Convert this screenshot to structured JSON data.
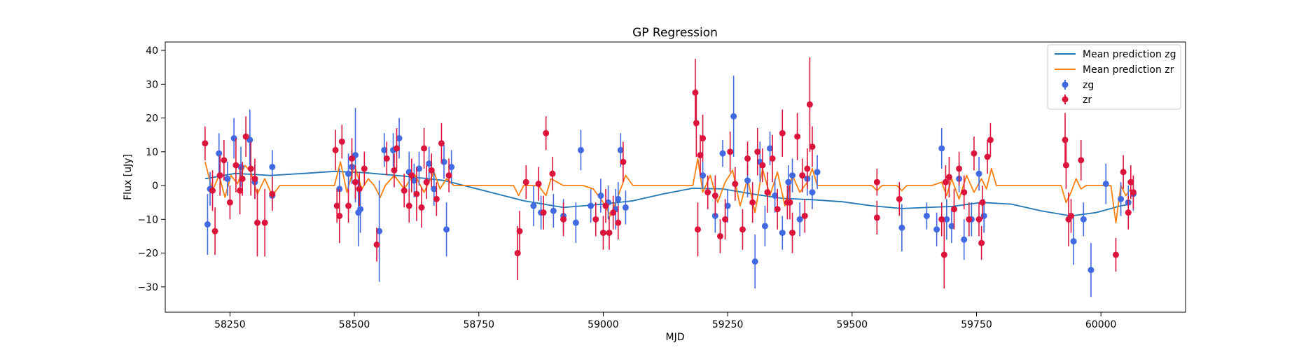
{
  "chart_data": {
    "type": "scatter",
    "title": "GP Regression",
    "xlabel": "MJD",
    "ylabel": "Flux [uJy]",
    "xlim": [
      58120,
      60170
    ],
    "ylim": [
      -37.5,
      42.5
    ],
    "xticks": [
      58250,
      58500,
      58750,
      59000,
      59250,
      59500,
      59750,
      60000
    ],
    "yticks": [
      -30,
      -20,
      -10,
      0,
      10,
      20,
      30,
      40
    ],
    "grid": false,
    "legend_position": "top-right",
    "colors": {
      "zg_line": "#1f77b4",
      "zr_line": "#ff7f0e",
      "zg_points": "#4169e1",
      "zr_points": "#dc143c"
    },
    "series": [
      {
        "name": "Mean prediction zg",
        "kind": "line",
        "x": [
          58200,
          58260,
          58330,
          58400,
          58460,
          58520,
          58600,
          58680,
          58760,
          58840,
          58920,
          59000,
          59060,
          59120,
          59180,
          59240,
          59300,
          59360,
          59420,
          59480,
          59540,
          59600,
          59650,
          59700,
          59760,
          59820,
          59880,
          59940,
          59990,
          60040,
          60060
        ],
        "y": [
          2.0,
          3.6,
          3.0,
          3.6,
          4.2,
          3.8,
          2.8,
          1.5,
          -1.5,
          -4.5,
          -6.5,
          -5.5,
          -4.5,
          -2.5,
          -0.8,
          -1.0,
          -2.5,
          -3.8,
          -4.2,
          -4.8,
          -6.0,
          -6.8,
          -6.5,
          -6.2,
          -5.0,
          -5.5,
          -7.5,
          -9.0,
          -8.0,
          -6.0,
          -5.5
        ]
      },
      {
        "name": "Mean prediction zr",
        "kind": "line",
        "x": [
          58200,
          58215,
          58228,
          58240,
          58252,
          58265,
          58280,
          58292,
          58305,
          58320,
          58335,
          58350,
          58460,
          58472,
          58485,
          58500,
          58515,
          58528,
          58540,
          58552,
          58562,
          58580,
          58600,
          58620,
          58640,
          58660,
          58672,
          58685,
          58700,
          58820,
          58830,
          58840,
          58870,
          58885,
          58895,
          58920,
          58960,
          58980,
          59000,
          59015,
          59030,
          59045,
          59060,
          59180,
          59190,
          59200,
          59215,
          59230,
          59245,
          59260,
          59275,
          59290,
          59305,
          59320,
          59335,
          59350,
          59365,
          59380,
          59395,
          59410,
          59420,
          59430,
          59540,
          59550,
          59560,
          59590,
          59600,
          59610,
          59640,
          59660,
          59680,
          59690,
          59700,
          59715,
          59730,
          59745,
          59760,
          59770,
          59780,
          59790,
          59920,
          59930,
          59940,
          59950,
          59960,
          59970,
          60020,
          60030,
          60040,
          60050,
          60060
        ],
        "y": [
          7.0,
          -1.5,
          3.0,
          -3.5,
          3.0,
          0.5,
          6.0,
          4.0,
          -2.5,
          2.0,
          -3.0,
          0.0,
          0.0,
          7.0,
          -2.0,
          6.0,
          -1.0,
          2.0,
          0.0,
          -3.5,
          0.0,
          3.0,
          -1.0,
          3.5,
          -2.0,
          4.0,
          -1.0,
          2.0,
          0.0,
          0.0,
          -3.0,
          0.0,
          0.0,
          -3.0,
          2.0,
          0.0,
          0.0,
          -1.0,
          -5.0,
          -9.0,
          -3.0,
          3.0,
          0.0,
          0.0,
          8.0,
          -2.0,
          3.0,
          -5.0,
          1.0,
          4.5,
          -6.0,
          2.0,
          -8.0,
          5.0,
          -3.0,
          4.0,
          -6.0,
          3.0,
          -2.0,
          1.0,
          5.0,
          0.0,
          0.0,
          -1.5,
          0.0,
          0.0,
          -1.5,
          0.0,
          0.0,
          0.0,
          1.0,
          -3.0,
          2.0,
          -4.0,
          3.0,
          -2.0,
          2.0,
          -1.0,
          5.0,
          0.0,
          0.0,
          -5.0,
          -2.0,
          2.0,
          -1.0,
          0.0,
          0.0,
          -11.0,
          0.0,
          -3.0,
          -1.0
        ]
      },
      {
        "name": "zg",
        "kind": "errorbar",
        "points": [
          [
            58205,
            -11.5,
            9
          ],
          [
            58210,
            -1,
            5
          ],
          [
            58228,
            9.5,
            6
          ],
          [
            58245,
            2,
            5
          ],
          [
            58258,
            14,
            6
          ],
          [
            58272,
            5.5,
            6
          ],
          [
            58290,
            13.5,
            9
          ],
          [
            58300,
            1,
            5
          ],
          [
            58335,
            5.5,
            5
          ],
          [
            58335,
            -3,
            4
          ],
          [
            58470,
            -1,
            6
          ],
          [
            58488,
            3.5,
            6
          ],
          [
            58495,
            5.5,
            5
          ],
          [
            58502,
            9,
            14
          ],
          [
            58508,
            -8,
            10
          ],
          [
            58512,
            -7,
            7
          ],
          [
            58550,
            -13.5,
            15
          ],
          [
            58560,
            10.5,
            5
          ],
          [
            58578,
            10.5,
            5
          ],
          [
            58590,
            14,
            6
          ],
          [
            58610,
            4,
            6
          ],
          [
            58630,
            5,
            5
          ],
          [
            58650,
            6.5,
            5
          ],
          [
            58680,
            7,
            5
          ],
          [
            58685,
            -13,
            8
          ],
          [
            58695,
            5.5,
            5
          ],
          [
            58660,
            -1,
            5
          ],
          [
            58620,
            1.5,
            5
          ],
          [
            58860,
            -6,
            6
          ],
          [
            58875,
            -8,
            5
          ],
          [
            58900,
            -7.5,
            5
          ],
          [
            58920,
            -9,
            5
          ],
          [
            58945,
            -11,
            6
          ],
          [
            58955,
            10.5,
            6
          ],
          [
            58975,
            -6,
            5
          ],
          [
            58995,
            -3,
            5
          ],
          [
            59010,
            -5,
            5
          ],
          [
            59025,
            -7,
            6
          ],
          [
            59035,
            10.5,
            5
          ],
          [
            59045,
            -6.5,
            5
          ],
          [
            59030,
            -4,
            5
          ],
          [
            59200,
            3,
            4
          ],
          [
            59225,
            -9,
            5
          ],
          [
            59240,
            9.5,
            4
          ],
          [
            59250,
            -6,
            5
          ],
          [
            59262,
            20.5,
            12
          ],
          [
            59290,
            1.5,
            5
          ],
          [
            59305,
            -22.5,
            8
          ],
          [
            59315,
            7,
            6
          ],
          [
            59335,
            11,
            5
          ],
          [
            59345,
            -3,
            5
          ],
          [
            59360,
            -14,
            5
          ],
          [
            59372,
            1,
            5
          ],
          [
            59380,
            3,
            5
          ],
          [
            59395,
            -10,
            5
          ],
          [
            59410,
            2,
            5
          ],
          [
            59420,
            -2,
            5
          ],
          [
            59430,
            4,
            5
          ],
          [
            59325,
            -12,
            6
          ],
          [
            59600,
            -12.5,
            7
          ],
          [
            59650,
            -9,
            4
          ],
          [
            59680,
            11,
            6
          ],
          [
            59690,
            -10,
            6
          ],
          [
            59700,
            -12,
            5
          ],
          [
            59715,
            2,
            4
          ],
          [
            59725,
            -16,
            6
          ],
          [
            59740,
            -10,
            5
          ],
          [
            59755,
            3.5,
            5
          ],
          [
            59765,
            -9,
            5
          ],
          [
            59670,
            -13,
            5
          ],
          [
            59945,
            -16.5,
            7
          ],
          [
            59965,
            -10,
            5
          ],
          [
            59980,
            -25,
            8
          ],
          [
            60010,
            0.5,
            6
          ],
          [
            60040,
            -4,
            5
          ],
          [
            60055,
            -5,
            5
          ],
          [
            60065,
            -2.5,
            5
          ]
        ]
      },
      {
        "name": "zr",
        "kind": "errorbar",
        "points": [
          [
            58200,
            12.5,
            5
          ],
          [
            58215,
            -1.5,
            6
          ],
          [
            58220,
            -13.5,
            7
          ],
          [
            58238,
            7.5,
            6
          ],
          [
            58250,
            -5,
            5
          ],
          [
            58262,
            6,
            8
          ],
          [
            58270,
            -1.5,
            7
          ],
          [
            58282,
            14.5,
            6
          ],
          [
            58292,
            5,
            8
          ],
          [
            58305,
            -11,
            10
          ],
          [
            58320,
            -11,
            10
          ],
          [
            58335,
            -2.5,
            5
          ],
          [
            58300,
            2,
            6
          ],
          [
            58275,
            2,
            5
          ],
          [
            58230,
            3,
            6
          ],
          [
            58462,
            10.5,
            6
          ],
          [
            58465,
            -6,
            5
          ],
          [
            58470,
            -9,
            8
          ],
          [
            58475,
            13,
            5
          ],
          [
            58488,
            -6,
            5
          ],
          [
            58495,
            8,
            6
          ],
          [
            58502,
            1,
            5
          ],
          [
            58510,
            -1,
            5
          ],
          [
            58520,
            5,
            5
          ],
          [
            58545,
            -17.5,
            5
          ],
          [
            58565,
            8,
            5
          ],
          [
            58585,
            11,
            6
          ],
          [
            58600,
            -1.5,
            5
          ],
          [
            58615,
            3,
            5
          ],
          [
            58625,
            -2.5,
            8
          ],
          [
            58635,
            -6.5,
            6
          ],
          [
            58645,
            1,
            5
          ],
          [
            58655,
            4.5,
            5
          ],
          [
            58665,
            -4,
            5
          ],
          [
            58675,
            12.5,
            6
          ],
          [
            58690,
            3,
            5
          ],
          [
            58640,
            11,
            6
          ],
          [
            58610,
            -6,
            5
          ],
          [
            58580,
            4.5,
            5
          ],
          [
            58828,
            -20,
            8
          ],
          [
            58832,
            -13.5,
            6
          ],
          [
            58845,
            1,
            5
          ],
          [
            58870,
            0.5,
            5
          ],
          [
            58885,
            15.5,
            5
          ],
          [
            58898,
            3.5,
            5
          ],
          [
            58880,
            -8,
            5
          ],
          [
            58920,
            -10,
            5
          ],
          [
            58985,
            -10,
            5
          ],
          [
            59000,
            -14,
            5
          ],
          [
            59012,
            -14,
            5
          ],
          [
            59020,
            -8,
            5
          ],
          [
            59030,
            -11,
            5
          ],
          [
            59040,
            7,
            6
          ],
          [
            59005,
            -6,
            5
          ],
          [
            59185,
            27.5,
            10
          ],
          [
            59187,
            18.5,
            10
          ],
          [
            59190,
            -13,
            8
          ],
          [
            59195,
            9,
            6
          ],
          [
            59200,
            14,
            7
          ],
          [
            59210,
            -2,
            5
          ],
          [
            59225,
            -3,
            6
          ],
          [
            59235,
            -15,
            5
          ],
          [
            59245,
            -10,
            6
          ],
          [
            59255,
            10,
            6
          ],
          [
            59265,
            0.5,
            5
          ],
          [
            59280,
            -13,
            6
          ],
          [
            59290,
            8,
            5
          ],
          [
            59300,
            -5,
            6
          ],
          [
            59310,
            10,
            7
          ],
          [
            59320,
            6,
            5
          ],
          [
            59330,
            -2,
            6
          ],
          [
            59340,
            8,
            7
          ],
          [
            59350,
            -7,
            6
          ],
          [
            59360,
            15.5,
            7
          ],
          [
            59370,
            -5,
            5
          ],
          [
            59380,
            -14,
            6
          ],
          [
            59390,
            14.5,
            7
          ],
          [
            59400,
            3,
            5
          ],
          [
            59410,
            5,
            6
          ],
          [
            59415,
            24,
            14
          ],
          [
            59420,
            11.5,
            6
          ],
          [
            59405,
            -9,
            5
          ],
          [
            59375,
            -5,
            5
          ],
          [
            59550,
            1,
            4
          ],
          [
            59550,
            -9.5,
            5
          ],
          [
            59595,
            -4,
            5
          ],
          [
            59685,
            -20.5,
            10
          ],
          [
            59688,
            1,
            5
          ],
          [
            59695,
            2.5,
            6
          ],
          [
            59705,
            -7,
            6
          ],
          [
            59715,
            5,
            5
          ],
          [
            59725,
            -2,
            5
          ],
          [
            59735,
            -10,
            5
          ],
          [
            59745,
            9.5,
            5
          ],
          [
            59755,
            -10,
            5
          ],
          [
            59762,
            -5,
            5
          ],
          [
            59772,
            8.5,
            5
          ],
          [
            59778,
            13.5,
            5
          ],
          [
            59760,
            -17,
            5
          ],
          [
            59680,
            -10,
            5
          ],
          [
            59928,
            13.5,
            8
          ],
          [
            59930,
            6,
            7
          ],
          [
            59935,
            -10,
            8
          ],
          [
            59940,
            -9,
            5
          ],
          [
            59960,
            7.5,
            6
          ],
          [
            60030,
            -20.5,
            5
          ],
          [
            60045,
            4,
            5
          ],
          [
            60055,
            -8,
            5
          ],
          [
            60060,
            1,
            5
          ],
          [
            60065,
            -2,
            5
          ]
        ]
      }
    ]
  }
}
